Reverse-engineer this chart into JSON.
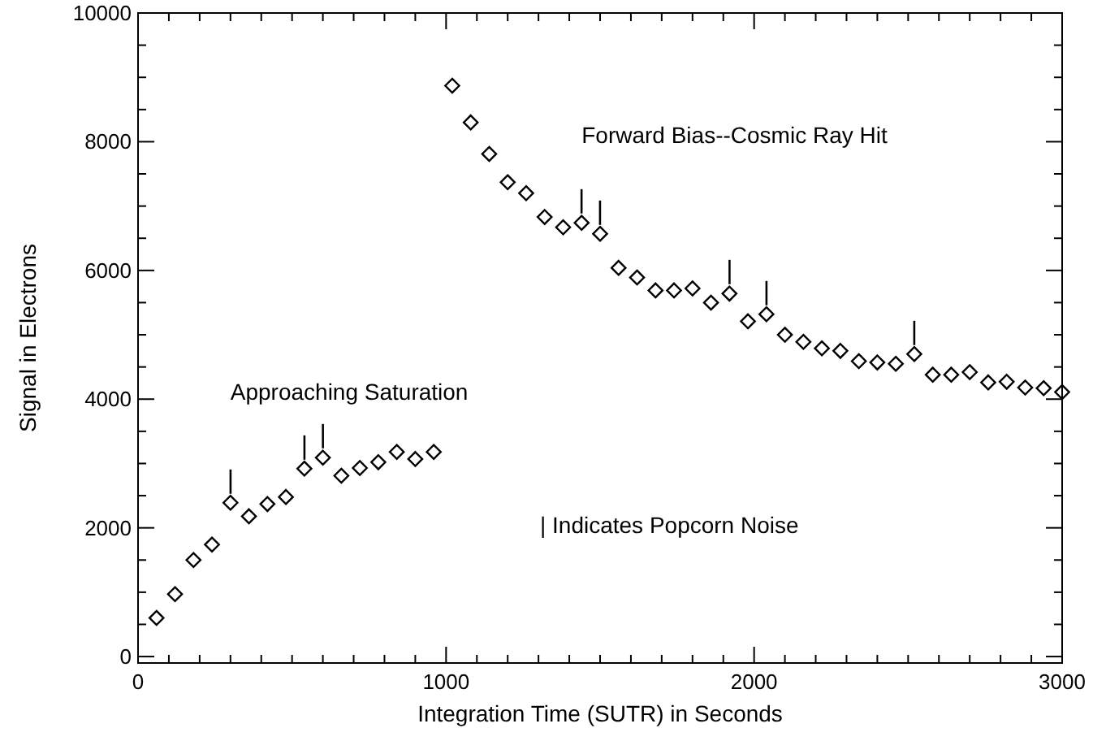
{
  "chart_data": {
    "type": "scatter",
    "xlabel": "Integration Time (SUTR) in Seconds",
    "ylabel": "Signal in Electrons",
    "x": [
      60,
      120,
      180,
      240,
      300,
      360,
      420,
      480,
      540,
      600,
      660,
      720,
      780,
      840,
      900,
      960,
      1020,
      1080,
      1140,
      1200,
      1260,
      1320,
      1380,
      1440,
      1500,
      1560,
      1620,
      1680,
      1740,
      1800,
      1860,
      1920,
      1980,
      2040,
      2100,
      2160,
      2220,
      2280,
      2340,
      2400,
      2460,
      2520,
      2580,
      2640,
      2700,
      2760,
      2820,
      2880,
      2940,
      3000
    ],
    "series": [
      {
        "color": "#000000",
        "values": [
          600,
          970,
          1500,
          1740,
          2390,
          2180,
          2370,
          2480,
          2920,
          3090,
          2810,
          2930,
          3020,
          3180,
          3070,
          3180,
          8870,
          8300,
          7810,
          7370,
          7200,
          6830,
          6670,
          6740,
          6570,
          6040,
          5890,
          5690,
          5690,
          5720,
          5500,
          5640,
          5210,
          5320,
          5000,
          4890,
          4790,
          4750,
          4590,
          4570,
          4550,
          4700,
          4380,
          4380,
          4420,
          4260,
          4270,
          4180,
          4170,
          4110
        ]
      }
    ],
    "marker": "diamond",
    "xlim": [
      0,
      3000
    ],
    "ylim": [
      -100,
      10000
    ],
    "xticks": [
      0,
      1000,
      2000,
      3000
    ],
    "yticks": [
      0,
      2000,
      4000,
      6000,
      8000,
      10000
    ],
    "grid": false,
    "annotations": [
      "Forward Bias--Cosmic Ray Hit",
      "Approaching Saturation",
      "| Indicates Popcorn Noise",
      {
        "text": "|",
        "x": 300,
        "y": 2390
      },
      {
        "text": "|",
        "x": 540,
        "y": 2920
      },
      {
        "text": "|",
        "x": 600,
        "y": 3090
      },
      {
        "text": "|",
        "x": 1440,
        "y": 6740
      },
      {
        "text": "|",
        "x": 1500,
        "y": 6570
      },
      {
        "text": "|",
        "x": 1920,
        "y": 5640
      },
      {
        "text": "|",
        "x": 2040,
        "y": 5320
      },
      {
        "text": "|",
        "x": 2520,
        "y": 4700
      }
    ]
  }
}
